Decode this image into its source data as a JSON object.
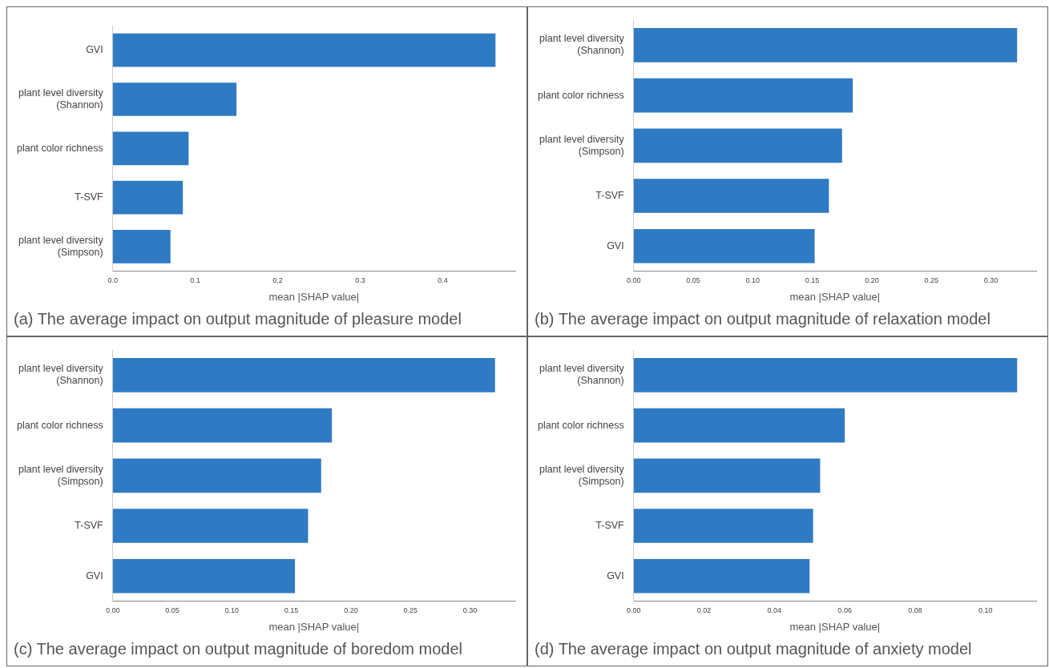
{
  "chart_data": [
    {
      "type": "bar",
      "orientation": "horizontal",
      "title": "(a) The average impact on output magnitude of pleasure model",
      "xlabel": "mean |SHAP value|",
      "categories": [
        "GVI",
        "plant level diversity (Shannon)",
        "plant color richness",
        "T-SVF",
        "plant level diversity (Simpson)"
      ],
      "values": [
        0.464,
        0.15,
        0.092,
        0.085,
        0.07
      ],
      "color": "#2e7bc4",
      "xlim": [
        0,
        0.488
      ],
      "xticks": [
        {
          "value": 0,
          "label": "0.0"
        },
        {
          "value": 0.1,
          "label": "0.1"
        },
        {
          "value": 0.2,
          "label": "0.2"
        },
        {
          "value": 0.3,
          "label": "0.3"
        },
        {
          "value": 0.4,
          "label": "0.4"
        }
      ],
      "grid": false,
      "legend": false
    },
    {
      "type": "bar",
      "orientation": "horizontal",
      "title": "(b) The average impact on output magnitude of relaxation model",
      "xlabel": "mean |SHAP value|",
      "categories": [
        "plant level diversity (Shannon)",
        "plant color richness",
        "plant level diversity (Simpson)",
        "T-SVF",
        "GVI"
      ],
      "values": [
        0.322,
        0.184,
        0.175,
        0.164,
        0.152
      ],
      "color": "#2e7bc4",
      "xlim": [
        0,
        0.338
      ],
      "xticks": [
        {
          "value": 0,
          "label": "0.00"
        },
        {
          "value": 0.05,
          "label": "0.05"
        },
        {
          "value": 0.1,
          "label": "0.10"
        },
        {
          "value": 0.15,
          "label": "0.15"
        },
        {
          "value": 0.2,
          "label": "0.20"
        },
        {
          "value": 0.25,
          "label": "0.25"
        },
        {
          "value": 0.3,
          "label": "0.30"
        }
      ],
      "grid": false,
      "legend": false
    },
    {
      "type": "bar",
      "orientation": "horizontal",
      "title": "(c) The average impact on output magnitude of boredom model",
      "xlabel": "mean |SHAP value|",
      "categories": [
        "plant level diversity (Shannon)",
        "plant color richness",
        "plant level diversity (Simpson)",
        "T-SVF",
        "GVI"
      ],
      "values": [
        0.321,
        0.184,
        0.175,
        0.164,
        0.153
      ],
      "color": "#2e7bc4",
      "xlim": [
        0,
        0.338
      ],
      "xticks": [
        {
          "value": 0,
          "label": "0.00"
        },
        {
          "value": 0.05,
          "label": "0.05"
        },
        {
          "value": 0.1,
          "label": "0.10"
        },
        {
          "value": 0.15,
          "label": "0.15"
        },
        {
          "value": 0.2,
          "label": "0.20"
        },
        {
          "value": 0.25,
          "label": "0.25"
        },
        {
          "value": 0.3,
          "label": "0.30"
        }
      ],
      "grid": false,
      "legend": false
    },
    {
      "type": "bar",
      "orientation": "horizontal",
      "title": "(d) The average impact on output magnitude of anxiety model",
      "xlabel": "mean |SHAP value|",
      "categories": [
        "plant level diversity (Shannon)",
        "plant color richness",
        "plant level diversity (Simpson)",
        "T-SVF",
        "GVI"
      ],
      "values": [
        0.109,
        0.06,
        0.053,
        0.051,
        0.05
      ],
      "color": "#2e7bc4",
      "xlim": [
        0,
        0.1144
      ],
      "xticks": [
        {
          "value": 0,
          "label": "0.00"
        },
        {
          "value": 0.02,
          "label": "0.02"
        },
        {
          "value": 0.04,
          "label": "0.04"
        },
        {
          "value": 0.06,
          "label": "0.06"
        },
        {
          "value": 0.08,
          "label": "0.08"
        },
        {
          "value": 0.1,
          "label": "0.10"
        }
      ],
      "grid": false,
      "legend": false
    }
  ]
}
